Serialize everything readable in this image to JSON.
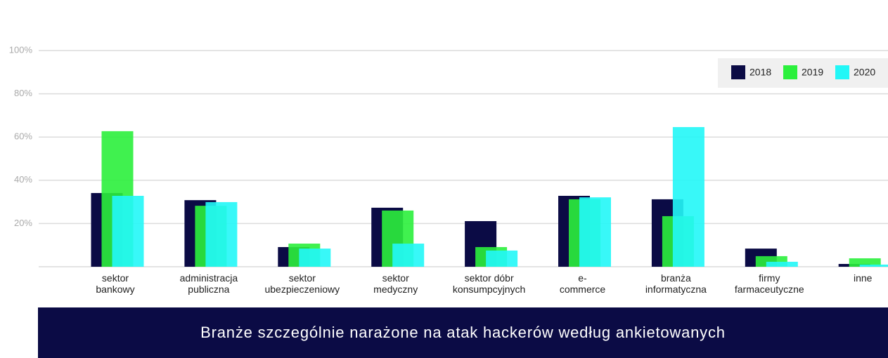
{
  "chart_data": {
    "type": "bar",
    "title": "Branże szczególnie narażone na atak hackerów według ankietowanych",
    "categories": [
      "sektor bankowy",
      "administracja publiczna",
      "sektor ubezpieczeniowy",
      "sektor medyczny",
      "sektor dóbr konsumpcyjnych",
      "e-commerce",
      "branża informatyczna",
      "firmy farmaceutyczne",
      "inne"
    ],
    "series": [
      {
        "name": "2018",
        "color": "#0b0b45",
        "values": [
          34.1,
          30.8,
          9.1,
          27.3,
          21.1,
          32.8,
          31.2,
          8.4,
          1.3
        ]
      },
      {
        "name": "2019",
        "color": "#2bf03c",
        "values": [
          62.7,
          28.2,
          10.7,
          26.0,
          9.1,
          31.2,
          23.4,
          4.9,
          3.9
        ]
      },
      {
        "name": "2020",
        "color": "#22f7f7",
        "values": [
          32.8,
          29.9,
          8.4,
          10.7,
          7.5,
          32.1,
          64.6,
          2.3,
          1.0
        ]
      }
    ],
    "ylim": [
      0,
      100
    ],
    "yticks": [
      {
        "value": 20,
        "label": "20%"
      },
      {
        "value": 40,
        "label": "40%"
      },
      {
        "value": 60,
        "label": "60%"
      },
      {
        "value": 80,
        "label": "80%"
      },
      {
        "value": 100,
        "label": "100%"
      }
    ],
    "grid": true,
    "legend": "top-right"
  }
}
